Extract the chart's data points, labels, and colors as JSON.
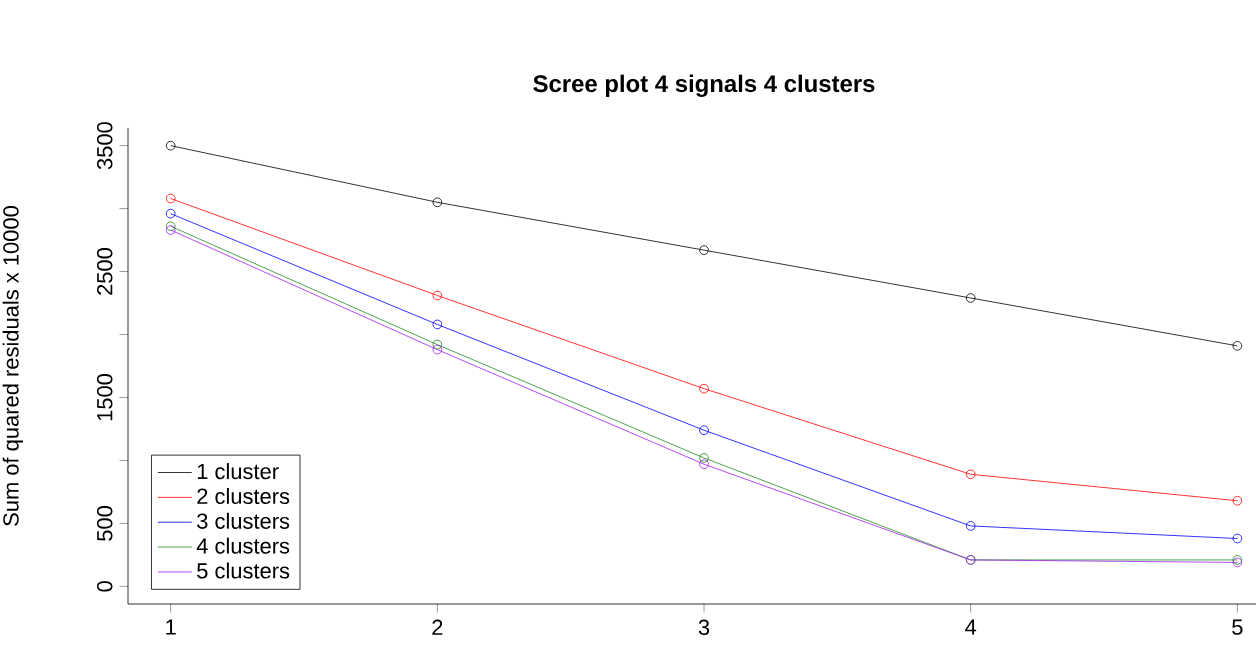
{
  "chart_data": {
    "type": "line",
    "title": "Scree plot 4 signals 4 clusters",
    "ylabel": "Sum of quared residuals x 10000",
    "x": [
      1,
      2,
      3,
      4,
      5
    ],
    "series": [
      {
        "name": "1 cluster",
        "color": "#000000",
        "values": [
          3500,
          3050,
          2670,
          2290,
          1910
        ]
      },
      {
        "name": "2 clusters",
        "color": "#ff0000",
        "values": [
          3080,
          2310,
          1570,
          890,
          680
        ]
      },
      {
        "name": "3 clusters",
        "color": "#0000ff",
        "values": [
          2960,
          2080,
          1240,
          480,
          380
        ]
      },
      {
        "name": "4 clusters",
        "color": "#228b22",
        "values": [
          2860,
          1920,
          1020,
          210,
          210
        ]
      },
      {
        "name": "5 clusters",
        "color": "#a020f0",
        "values": [
          2830,
          1880,
          970,
          210,
          190
        ]
      }
    ],
    "xlim": [
      0.84,
      5.16
    ],
    "ylim": [
      -140,
      3640
    ],
    "xticks": [
      1,
      2,
      3,
      4,
      5
    ],
    "yticks": [
      0,
      500,
      {
        "value": 1000,
        "label": null
      },
      1500,
      {
        "value": 2000,
        "label": null
      },
      2500,
      {
        "value": 3000,
        "label": null
      },
      3500
    ],
    "marker": "circle",
    "line_style": "solid",
    "grid": false,
    "legend": "bottom left"
  }
}
